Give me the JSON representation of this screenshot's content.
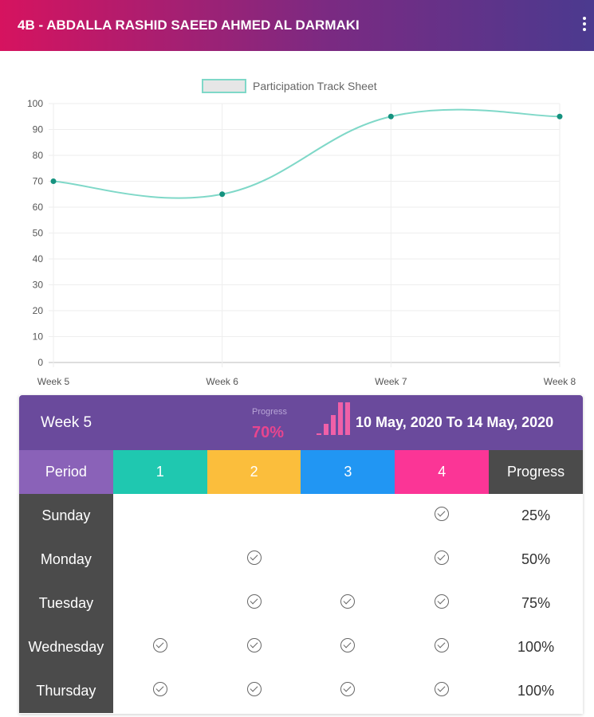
{
  "header": {
    "title": "4B - ABDALLA RASHID SAEED AHMED AL DARMAKI",
    "menu_icon": "more-vert-icon"
  },
  "chart_data": {
    "type": "line",
    "legend": "Participation Track Sheet",
    "legend_position": "top-center",
    "categories": [
      "Week 5",
      "Week 6",
      "Week 7",
      "Week 8"
    ],
    "series": [
      {
        "name": "Participation Track Sheet",
        "values": [
          70,
          65,
          95,
          95
        ]
      }
    ],
    "ylim": [
      0,
      100
    ],
    "yticks": [
      0,
      10,
      20,
      30,
      40,
      50,
      60,
      70,
      80,
      90,
      100
    ],
    "line_color": "#7fd8c8",
    "point_color": "#15927f"
  },
  "week": {
    "label": "Week 5",
    "progress_label": "Progress",
    "progress_value": "70%",
    "date_range": "10 May, 2020 To 14 May, 2020",
    "spark": [
      5,
      30,
      55,
      90,
      90
    ]
  },
  "table": {
    "headers": [
      "Period",
      "1",
      "2",
      "3",
      "4",
      "Progress"
    ],
    "header_colors": [
      "#8a62b8",
      "#1fc8b0",
      "#fbbe3c",
      "#2196f3",
      "#fb3596",
      "#4b4b4b"
    ],
    "rows": [
      {
        "day": "Sunday",
        "checks": [
          false,
          false,
          false,
          true
        ],
        "progress": "25%"
      },
      {
        "day": "Monday",
        "checks": [
          false,
          true,
          false,
          true
        ],
        "progress": "50%"
      },
      {
        "day": "Tuesday",
        "checks": [
          false,
          true,
          true,
          true
        ],
        "progress": "75%"
      },
      {
        "day": "Wednesday",
        "checks": [
          true,
          true,
          true,
          true
        ],
        "progress": "100%"
      },
      {
        "day": "Thursday",
        "checks": [
          true,
          true,
          true,
          true
        ],
        "progress": "100%"
      }
    ]
  }
}
